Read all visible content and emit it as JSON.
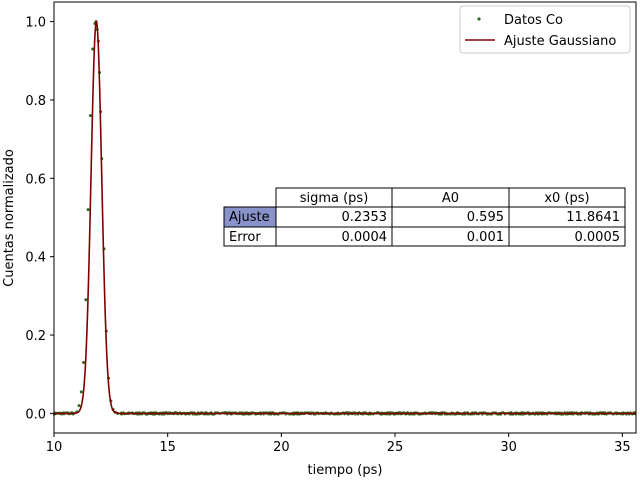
{
  "chart_data": {
    "type": "line",
    "xlabel": "tiempo (ps)",
    "ylabel": "Cuentas normalizado",
    "xlim": [
      10.0,
      35.6
    ],
    "ylim": [
      -0.05,
      1.05
    ],
    "x_ticks": [
      10,
      15,
      20,
      25,
      30,
      35
    ],
    "y_ticks": [
      0.0,
      0.2,
      0.4,
      0.6,
      0.8,
      1.0
    ],
    "x_tick_labels": [
      "10",
      "15",
      "20",
      "25",
      "30",
      "35"
    ],
    "y_tick_labels": [
      "0.0",
      "0.2",
      "0.4",
      "0.6",
      "0.8",
      "1.0"
    ],
    "grid": false,
    "legend_position": "top-right",
    "series": [
      {
        "name": "Datos Co",
        "kind": "scatter",
        "color": "#2e6b1e",
        "x": [
          11.0,
          11.1,
          11.2,
          11.3,
          11.4,
          11.5,
          11.6,
          11.7,
          11.8,
          11.85,
          11.9,
          11.95,
          12.0,
          12.05,
          12.1,
          12.2,
          12.3,
          12.4,
          12.5,
          12.6,
          12.7,
          12.8
        ],
        "y": [
          0.004,
          0.02,
          0.055,
          0.13,
          0.29,
          0.52,
          0.76,
          0.93,
          0.995,
          1.0,
          0.98,
          0.95,
          0.87,
          0.77,
          0.65,
          0.42,
          0.21,
          0.09,
          0.032,
          0.01,
          0.003,
          0.0
        ],
        "baseline": 0.0,
        "baseline_range": [
          10.0,
          35.6
        ]
      },
      {
        "name": "Ajuste Gaussiano",
        "kind": "line",
        "color": "#800000",
        "model": "gaussian",
        "amplitude": 1.0,
        "center": 11.8641,
        "sigma": 0.2353
      }
    ],
    "table": {
      "col_headers": [
        "sigma (ps)",
        "A0",
        "x0 (ps)"
      ],
      "rows": [
        {
          "label": "Ajuste",
          "values": [
            "0.2353",
            "0.595",
            "11.8641"
          ]
        },
        {
          "label": "Error",
          "values": [
            "0.0004",
            "0.001",
            "0.0005"
          ]
        }
      ],
      "label_highlight_color": "#8a93c9"
    }
  }
}
